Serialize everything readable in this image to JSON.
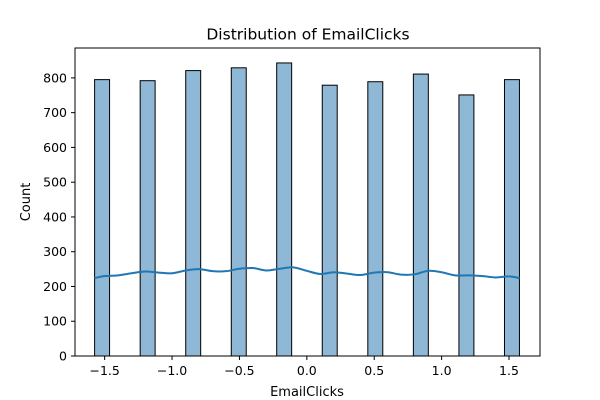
{
  "chart_data": {
    "type": "bar",
    "title": "Distribution of EmailClicks",
    "xlabel": "EmailClicks",
    "ylabel": "Count",
    "xlim": [
      -1.72,
      1.73
    ],
    "ylim": [
      0,
      886
    ],
    "x_ticks": [
      -1.5,
      -1.0,
      -0.5,
      0.0,
      0.5,
      1.0,
      1.5
    ],
    "x_tick_labels": [
      "−1.5",
      "−1.0",
      "−0.5",
      "0.0",
      "0.5",
      "1.0",
      "1.5"
    ],
    "y_ticks": [
      0,
      100,
      200,
      300,
      400,
      500,
      600,
      700,
      800
    ],
    "y_tick_labels": [
      "0",
      "100",
      "200",
      "300",
      "400",
      "500",
      "600",
      "700",
      "800"
    ],
    "bar_width": 0.111,
    "bars": [
      {
        "x": -1.519,
        "count": 795
      },
      {
        "x": -1.181,
        "count": 792
      },
      {
        "x": -0.843,
        "count": 821
      },
      {
        "x": -0.505,
        "count": 829
      },
      {
        "x": -0.168,
        "count": 843
      },
      {
        "x": 0.17,
        "count": 779
      },
      {
        "x": 0.508,
        "count": 789
      },
      {
        "x": 0.846,
        "count": 811
      },
      {
        "x": 1.184,
        "count": 751
      },
      {
        "x": 1.522,
        "count": 795
      }
    ],
    "kde": {
      "x": [
        -1.575,
        -1.5,
        -1.4,
        -1.3,
        -1.2,
        -1.1,
        -1.0,
        -0.9,
        -0.8,
        -0.7,
        -0.6,
        -0.5,
        -0.4,
        -0.3,
        -0.2,
        -0.1,
        0.0,
        0.1,
        0.2,
        0.3,
        0.4,
        0.5,
        0.6,
        0.7,
        0.8,
        0.9,
        1.0,
        1.1,
        1.2,
        1.3,
        1.4,
        1.5,
        1.578
      ],
      "y": [
        224,
        230,
        232,
        238,
        243,
        240,
        238,
        246,
        250,
        244,
        244,
        251,
        253,
        246,
        251,
        255,
        245,
        236,
        241,
        237,
        233,
        240,
        241,
        234,
        235,
        245,
        241,
        232,
        232,
        230,
        226,
        229,
        224
      ]
    },
    "grid": false,
    "colors": {
      "bar_fill": "#8fb8d7",
      "bar_edge": "#000000",
      "kde_line": "#1f77b4"
    }
  }
}
